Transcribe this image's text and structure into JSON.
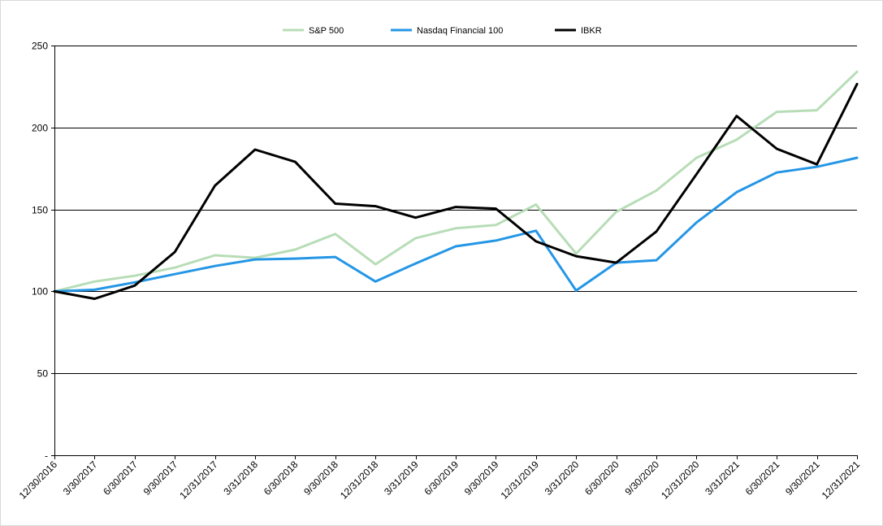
{
  "chart_data": {
    "type": "line",
    "title": "",
    "xlabel": "",
    "ylabel": "",
    "x": [
      "12/30/2016",
      "3/30/2017",
      "6/30/2017",
      "9/30/2017",
      "12/31/2017",
      "3/31/2018",
      "6/30/2018",
      "9/30/2018",
      "12/31/2018",
      "3/31/2019",
      "6/30/2019",
      "9/30/2019",
      "12/31/2019",
      "3/31/2020",
      "6/30/2020",
      "9/30/2020",
      "12/31/2020",
      "3/31/2021",
      "6/30/2021",
      "9/30/2021",
      "12/31/2021"
    ],
    "ylim": [
      0,
      250
    ],
    "yticks": [
      {
        "value": 0,
        "label": "-"
      },
      {
        "value": 50,
        "label": "50"
      },
      {
        "value": 100,
        "label": "100"
      },
      {
        "value": 150,
        "label": "150"
      },
      {
        "value": 200,
        "label": "200"
      },
      {
        "value": 250,
        "label": "250"
      }
    ],
    "grid": "horizontal",
    "legend_position": "top-center",
    "series": [
      {
        "name": "S&P 500",
        "color": "#b7ddb7",
        "values": [
          100,
          106,
          109.5,
          114.5,
          122,
          120.5,
          125.5,
          135,
          116.5,
          132.5,
          138.5,
          140.5,
          153,
          123,
          148.5,
          161.5,
          181.5,
          192.5,
          209.5,
          210.5,
          234
        ]
      },
      {
        "name": "Nasdaq Financial 100",
        "color": "#2496e5",
        "values": [
          100,
          101,
          105.5,
          110.5,
          115.5,
          119.5,
          120,
          121,
          106,
          117,
          127.5,
          131,
          137,
          100.5,
          117.5,
          119,
          142,
          160.5,
          172.5,
          176,
          181.5
        ]
      },
      {
        "name": "IBKR",
        "color": "#000000",
        "values": [
          100,
          95.5,
          103.5,
          124,
          164.5,
          186.5,
          179,
          153.5,
          152,
          145,
          151.5,
          150.5,
          130.5,
          121.5,
          117.5,
          136.5,
          171.5,
          207,
          187,
          177.5,
          226.5
        ]
      }
    ]
  }
}
